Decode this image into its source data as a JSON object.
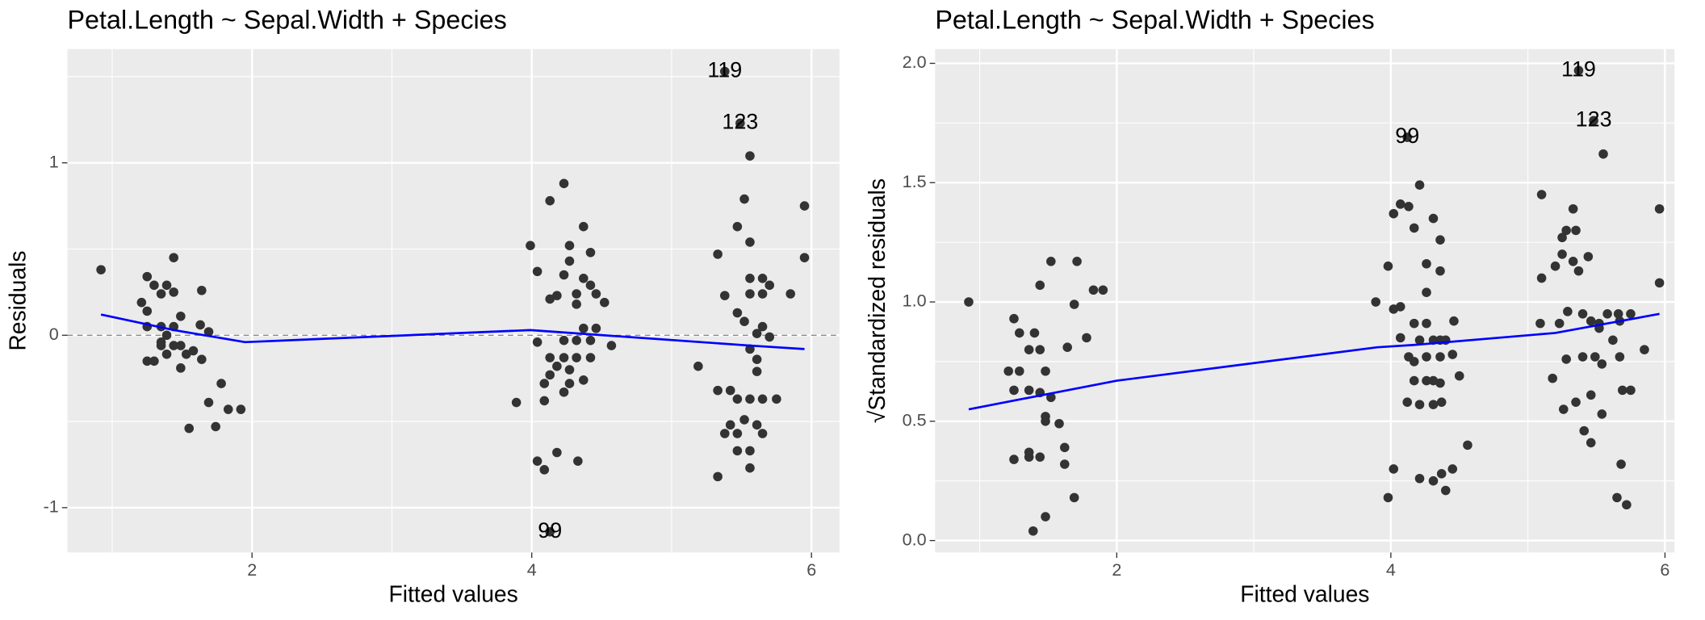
{
  "chart_data": [
    {
      "type": "scatter",
      "title": "Petal.Length ~ Sepal.Width + Species",
      "xlabel": "Fitted values",
      "ylabel": "Residuals",
      "xlim": [
        0.68,
        6.2
      ],
      "ylim": [
        -1.26,
        1.66
      ],
      "xticks": [
        2,
        4,
        6
      ],
      "yticks": [
        -1,
        0,
        1
      ],
      "grid": true,
      "point_color": "#333333",
      "hline": 0,
      "x": [
        0.92,
        1.21,
        1.25,
        1.3,
        1.35,
        1.39,
        1.44,
        1.25,
        1.35,
        1.25,
        1.44,
        1.49,
        1.44,
        1.39,
        1.35,
        1.49,
        1.3,
        1.25,
        1.53,
        1.58,
        1.64,
        1.49,
        1.44,
        1.63,
        1.64,
        1.69,
        1.78,
        1.69,
        1.83,
        1.92,
        1.74,
        1.55,
        1.35,
        1.39,
        3.89,
        3.99,
        4.04,
        4.04,
        4.09,
        4.13,
        4.13,
        4.04,
        4.09,
        4.18,
        4.33,
        4.23,
        4.18,
        4.23,
        4.27,
        4.27,
        4.32,
        4.37,
        4.42,
        4.46,
        4.52,
        4.37,
        4.32,
        4.42,
        4.23,
        4.32,
        4.37,
        4.42,
        4.46,
        4.57,
        4.13,
        4.23,
        4.32,
        4.42,
        4.13,
        4.27,
        4.18,
        4.23,
        4.27,
        4.37,
        4.09,
        5.19,
        5.33,
        5.33,
        5.33,
        5.38,
        5.42,
        5.47,
        5.47,
        5.52,
        5.56,
        5.56,
        5.56,
        5.56,
        5.52,
        5.56,
        5.61,
        5.65,
        5.65,
        5.7,
        5.65,
        5.7,
        5.61,
        5.47,
        5.56,
        5.65,
        5.75,
        5.42,
        5.52,
        5.61,
        5.65,
        5.47,
        5.56,
        5.56,
        5.47,
        5.38,
        5.85,
        5.95,
        5.95,
        5.61,
        5.38,
        5.49,
        4.13
      ],
      "y": [
        0.38,
        0.19,
        0.34,
        0.29,
        0.24,
        0.29,
        0.45,
        0.14,
        0.05,
        0.05,
        0.25,
        0.11,
        0.05,
        0.0,
        -0.06,
        -0.06,
        -0.15,
        -0.15,
        -0.11,
        -0.09,
        -0.14,
        -0.19,
        -0.06,
        0.06,
        0.26,
        0.02,
        -0.28,
        -0.39,
        -0.43,
        -0.43,
        -0.53,
        -0.54,
        -0.04,
        -0.11,
        -0.39,
        0.52,
        0.37,
        -0.04,
        -0.28,
        0.21,
        0.78,
        -0.73,
        -0.78,
        -0.68,
        -0.73,
        0.88,
        0.23,
        0.35,
        0.52,
        0.43,
        0.24,
        0.63,
        0.48,
        0.24,
        0.19,
        0.33,
        0.18,
        0.29,
        -0.03,
        -0.03,
        0.04,
        -0.03,
        0.04,
        -0.06,
        -0.13,
        -0.13,
        -0.13,
        -0.13,
        -0.23,
        -0.2,
        -0.18,
        -0.33,
        -0.28,
        -0.26,
        -0.38,
        -0.18,
        0.47,
        -0.82,
        -0.32,
        0.23,
        -0.32,
        0.63,
        0.13,
        0.79,
        1.04,
        0.54,
        0.33,
        0.24,
        0.08,
        -0.08,
        0.01,
        0.33,
        0.24,
        0.29,
        0.05,
        -0.01,
        -0.21,
        -0.37,
        -0.37,
        -0.37,
        -0.37,
        -0.52,
        -0.49,
        -0.52,
        -0.57,
        -0.67,
        -0.67,
        -0.77,
        -0.57,
        -0.57,
        0.24,
        0.75,
        0.45,
        -0.14,
        1.53,
        1.23,
        -1.14
      ],
      "point_labels": [
        {
          "label": "119",
          "x": 5.38,
          "y": 1.53
        },
        {
          "label": "123",
          "x": 5.49,
          "y": 1.23
        },
        {
          "label": "99",
          "x": 4.13,
          "y": -1.14
        }
      ],
      "smooth": {
        "color": "#0000ff",
        "x": [
          0.92,
          1.44,
          1.95,
          3.99,
          5.56,
          5.95
        ],
        "y": [
          0.12,
          0.03,
          -0.04,
          0.03,
          -0.06,
          -0.08
        ]
      }
    },
    {
      "type": "scatter",
      "title": "Petal.Length ~ Sepal.Width + Species",
      "xlabel": "Fitted values",
      "ylabel": "√Standardized residuals",
      "xlim": [
        0.675,
        6.07
      ],
      "ylim": [
        -0.05,
        2.06
      ],
      "xticks": [
        2,
        4,
        6
      ],
      "yticks": [
        {
          "value": 0,
          "label": "0.0"
        },
        {
          "value": 0.5,
          "label": "0.5"
        },
        {
          "value": 1,
          "label": "1.0"
        },
        {
          "value": 1.5,
          "label": "1.5"
        },
        {
          "value": 2,
          "label": "2.0"
        }
      ],
      "grid": true,
      "point_color": "#333333",
      "x": [
        0.92,
        1.25,
        1.29,
        1.4,
        1.44,
        1.52,
        1.71,
        1.83,
        1.9,
        1.69,
        1.78,
        1.64,
        1.44,
        1.36,
        1.48,
        1.21,
        1.29,
        1.25,
        1.36,
        1.44,
        1.52,
        1.48,
        1.48,
        1.58,
        1.25,
        1.36,
        1.44,
        1.36,
        1.62,
        1.62,
        1.69,
        1.48,
        1.39,
        3.89,
        3.98,
        4.02,
        4.07,
        4.13,
        4.17,
        4.21,
        4.31,
        4.36,
        4.26,
        4.36,
        4.26,
        4.07,
        4.02,
        4.17,
        4.26,
        4.46,
        4.07,
        4.21,
        4.31,
        4.36,
        4.4,
        4.13,
        4.17,
        4.26,
        4.36,
        4.45,
        4.17,
        4.26,
        4.31,
        4.36,
        4.5,
        4.12,
        4.21,
        4.31,
        4.37,
        4.56,
        4.02,
        4.21,
        4.31,
        4.37,
        4.45,
        4.4,
        3.98,
        5.18,
        5.1,
        5.09,
        5.1,
        5.2,
        5.25,
        5.25,
        5.28,
        5.33,
        5.35,
        5.33,
        5.37,
        5.44,
        5.55,
        5.52,
        5.23,
        5.29,
        5.4,
        5.46,
        5.58,
        5.66,
        5.67,
        5.75,
        5.52,
        5.62,
        5.28,
        5.4,
        5.49,
        5.54,
        5.67,
        5.26,
        5.35,
        5.46,
        5.69,
        5.54,
        5.85,
        5.96,
        5.96,
        5.75,
        5.41,
        5.46,
        5.68,
        5.65,
        5.72,
        4.12,
        5.37,
        5.48
      ],
      "y": [
        1.0,
        0.93,
        0.87,
        0.87,
        1.07,
        1.17,
        1.17,
        1.05,
        1.05,
        0.99,
        0.85,
        0.81,
        0.8,
        0.8,
        0.71,
        0.71,
        0.71,
        0.63,
        0.63,
        0.62,
        0.6,
        0.52,
        0.5,
        0.49,
        0.34,
        0.35,
        0.35,
        0.37,
        0.39,
        0.32,
        0.18,
        0.1,
        0.04,
        1.0,
        1.15,
        1.37,
        1.41,
        1.4,
        1.31,
        1.49,
        1.35,
        1.26,
        1.16,
        1.13,
        1.04,
        0.98,
        0.97,
        0.91,
        0.91,
        0.92,
        0.85,
        0.84,
        0.84,
        0.84,
        0.84,
        0.77,
        0.75,
        0.77,
        0.77,
        0.78,
        0.67,
        0.67,
        0.67,
        0.66,
        0.69,
        0.58,
        0.57,
        0.57,
        0.58,
        0.4,
        0.3,
        0.26,
        0.25,
        0.28,
        0.3,
        0.21,
        0.18,
        0.68,
        1.1,
        0.91,
        1.45,
        1.15,
        1.27,
        1.2,
        1.3,
        1.39,
        1.3,
        1.17,
        1.13,
        1.19,
        1.62,
        0.91,
        0.91,
        0.96,
        0.95,
        0.92,
        0.95,
        0.95,
        0.92,
        0.95,
        0.89,
        0.84,
        0.76,
        0.77,
        0.77,
        0.74,
        0.77,
        0.55,
        0.58,
        0.61,
        0.63,
        0.53,
        0.8,
        1.08,
        1.39,
        0.63,
        0.46,
        0.41,
        0.32,
        0.18,
        0.15,
        1.69,
        1.97,
        1.76
      ],
      "point_labels": [
        {
          "label": "99",
          "x": 4.12,
          "y": 1.69
        },
        {
          "label": "119",
          "x": 5.37,
          "y": 1.97
        },
        {
          "label": "123",
          "x": 5.48,
          "y": 1.76
        }
      ],
      "smooth": {
        "color": "#0000ff",
        "x": [
          0.92,
          2.0,
          3.9,
          4.17,
          5.2,
          5.96
        ],
        "y": [
          0.55,
          0.67,
          0.81,
          0.82,
          0.87,
          0.95
        ]
      }
    }
  ]
}
